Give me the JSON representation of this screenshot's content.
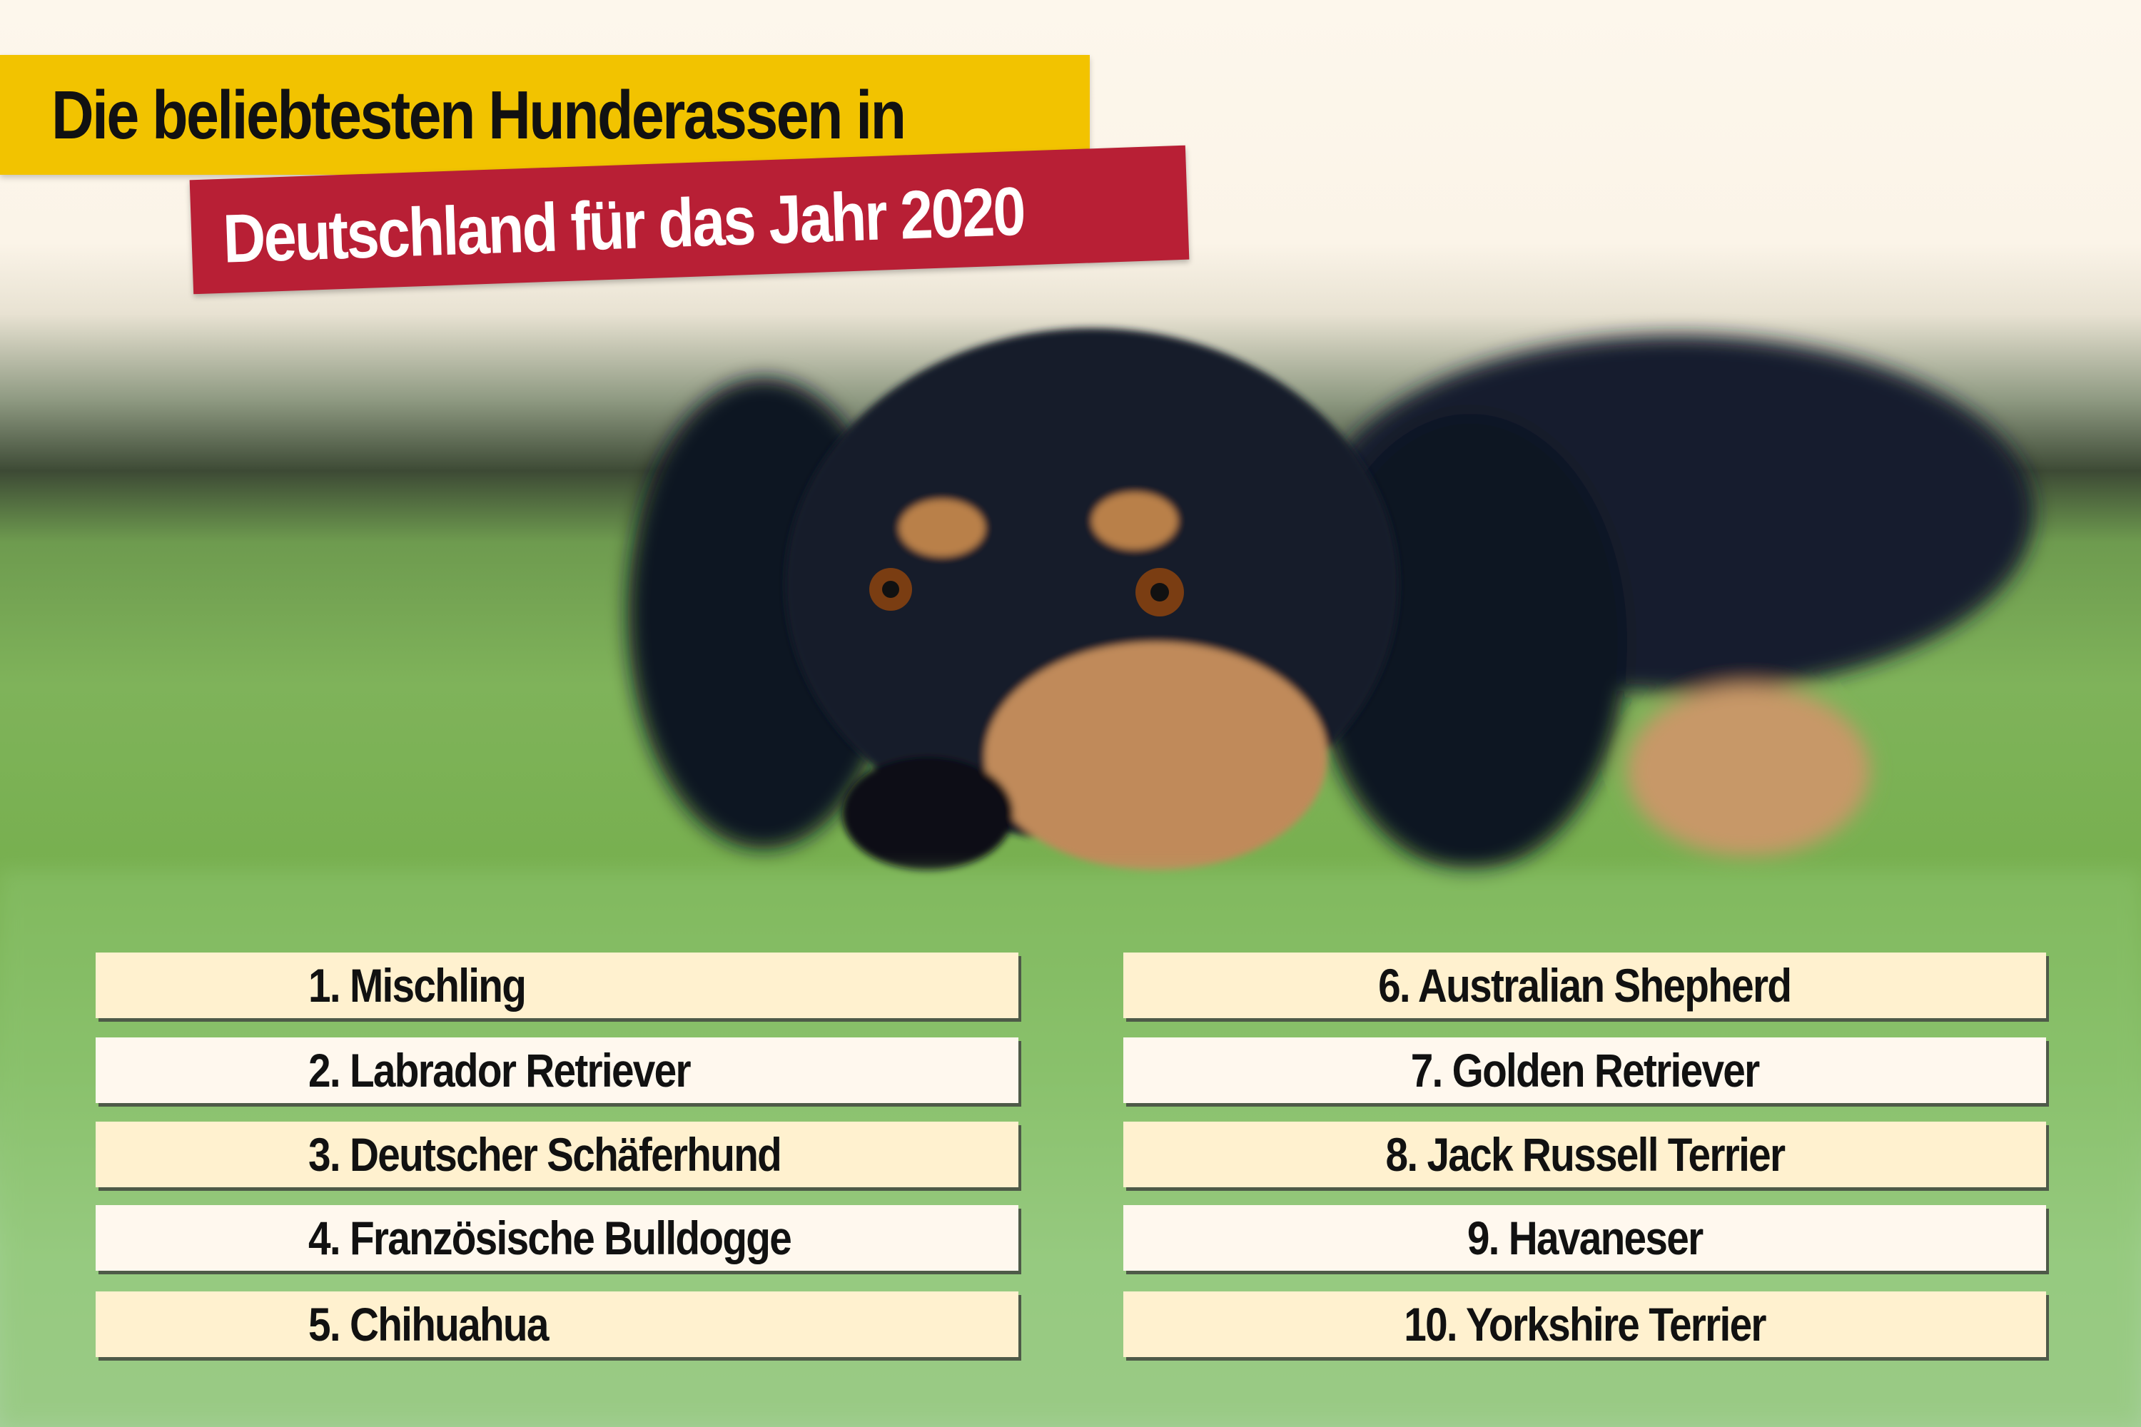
{
  "title": {
    "line1": "Die beliebtesten Hunderassen in",
    "line2": "Deutschland für das Jahr 2020"
  },
  "colors": {
    "title_band_yellow": "#f2c300",
    "title_band_red": "#b81f35",
    "row_light": "#fff8ee",
    "row_tinted": "#fff1cf"
  },
  "ranking": {
    "left": [
      "1. Mischling",
      "2. Labrador Retriever",
      "3. Deutscher Schäferhund",
      "4. Französische Bulldogge",
      "5. Chihuahua"
    ],
    "right": [
      "6. Australian Shepherd",
      "7. Golden Retriever",
      "8. Jack Russell Terrier",
      "9. Havaneser",
      "10. Yorkshire Terrier"
    ]
  }
}
